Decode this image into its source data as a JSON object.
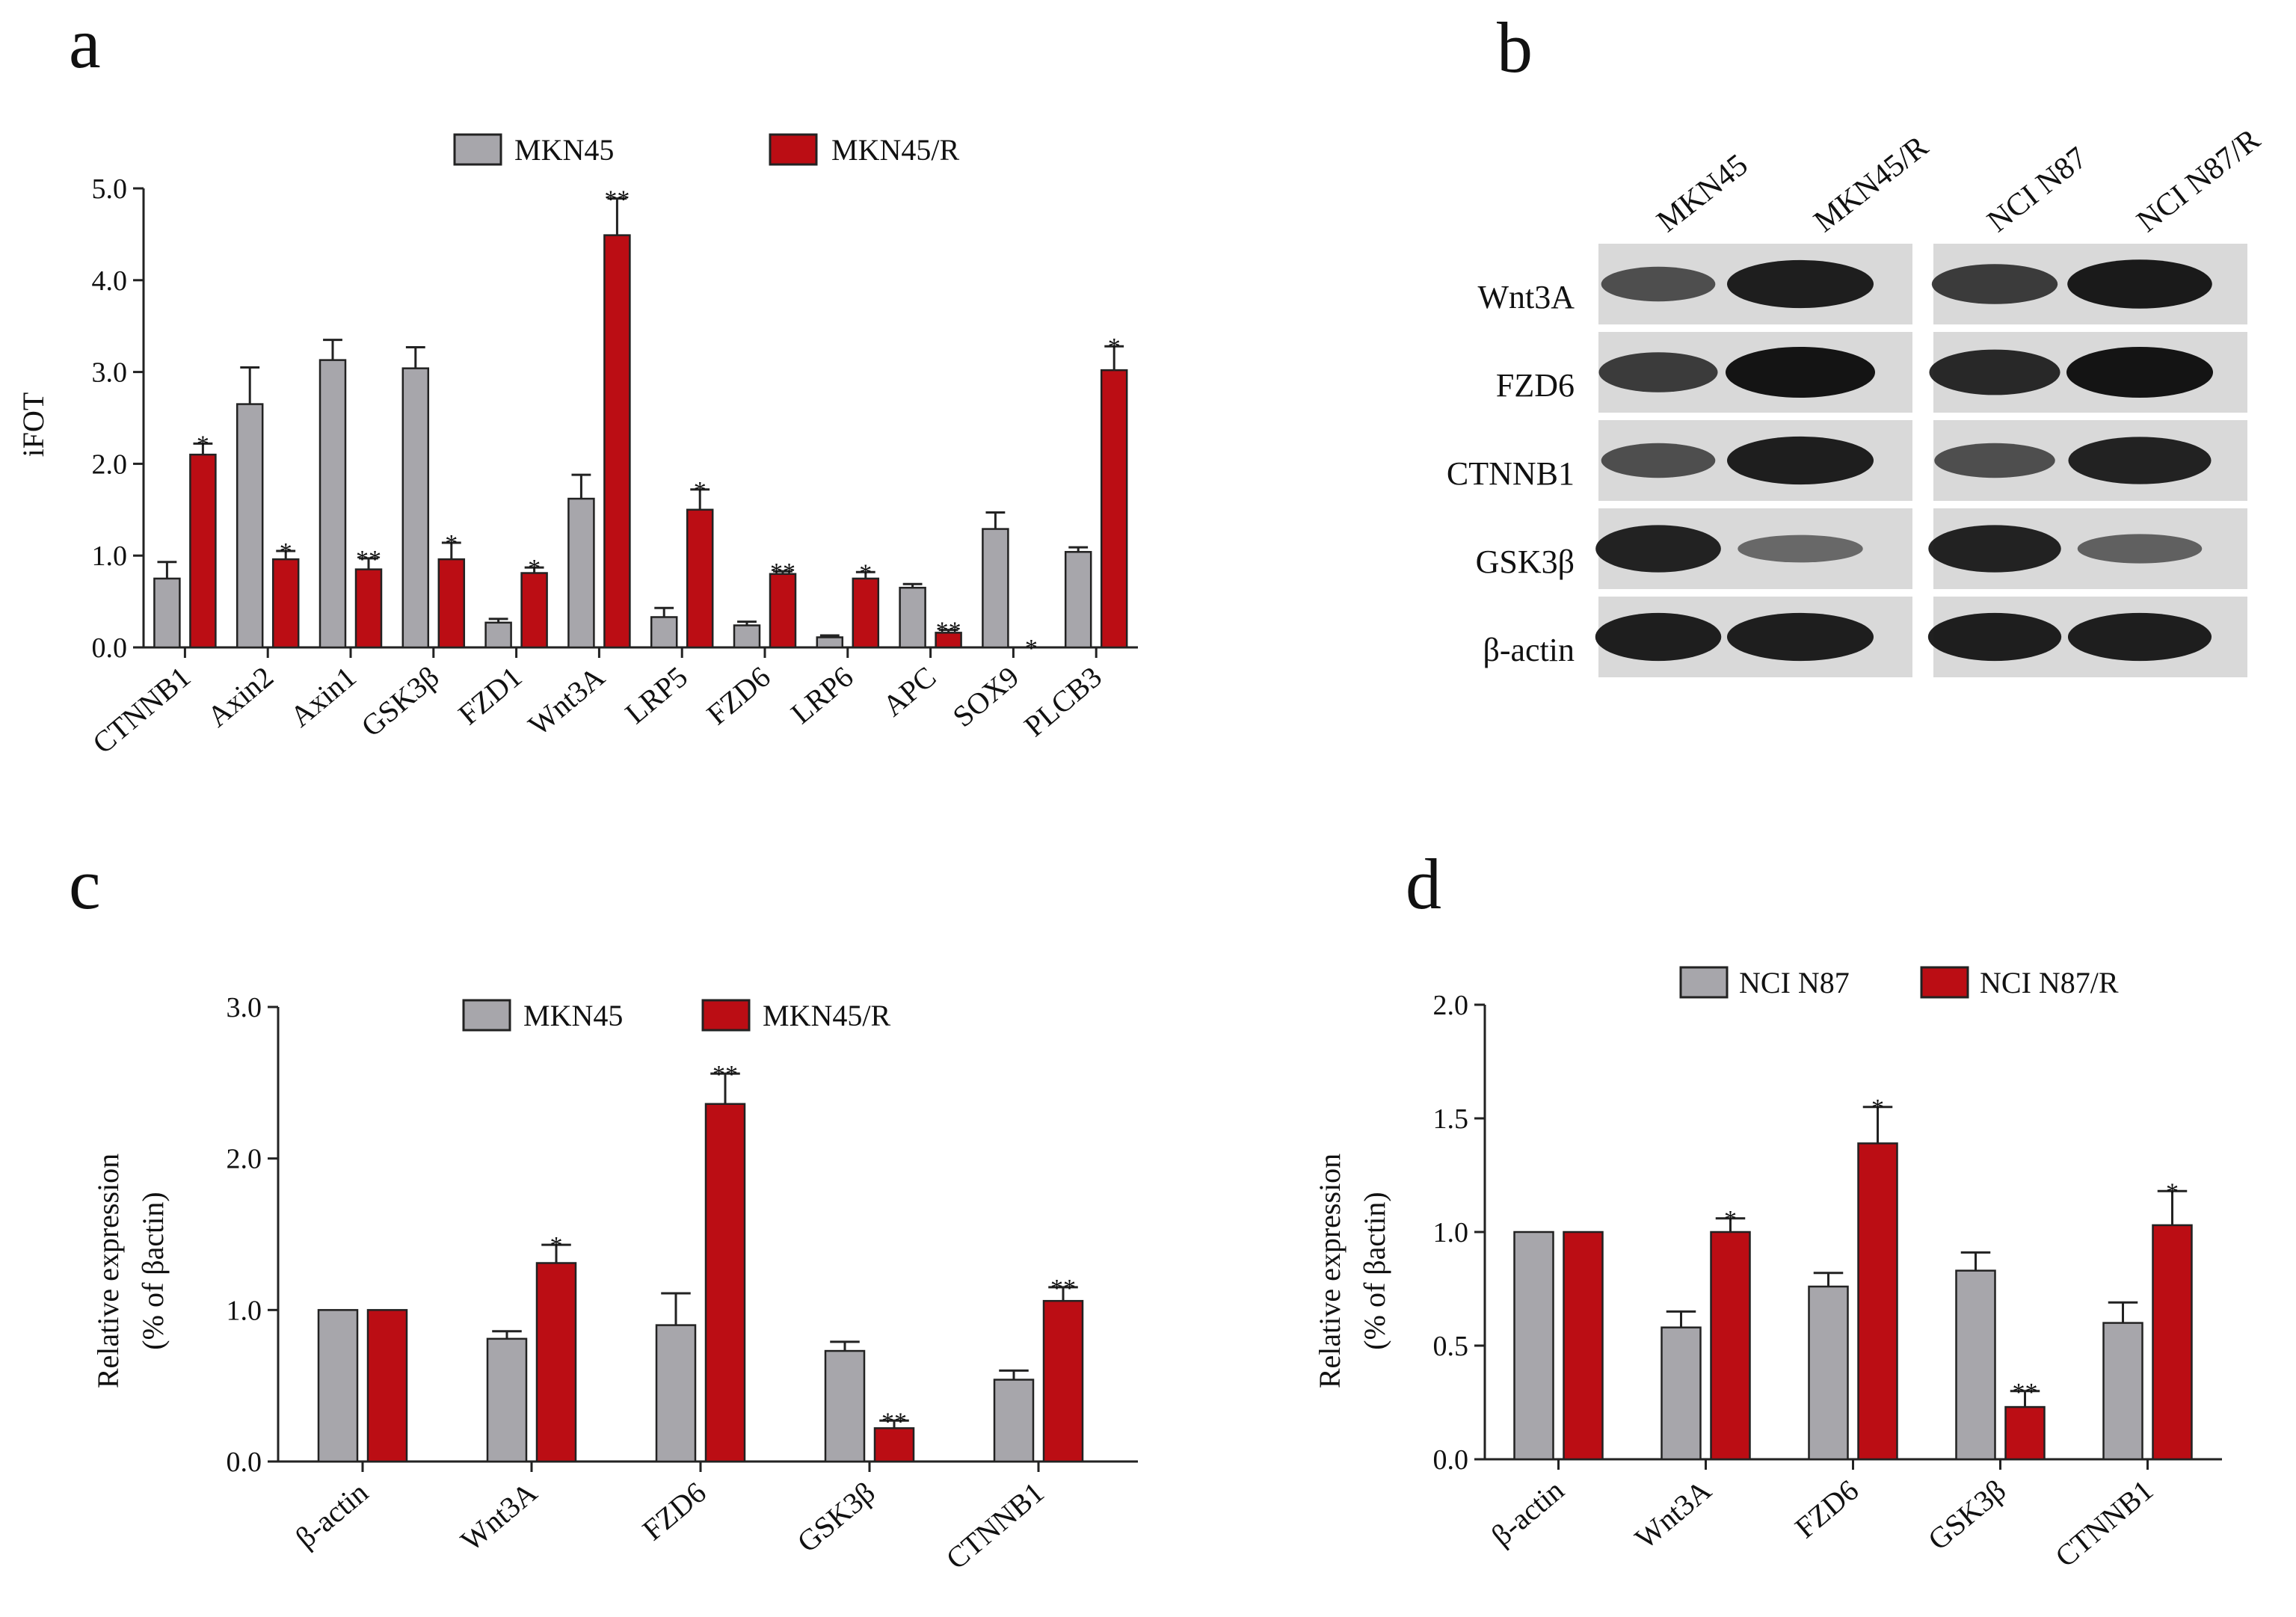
{
  "colors": {
    "control": "#a7a6ab",
    "resistant": "#bb0d14",
    "bar_edge": "#222222",
    "axis": "#222222",
    "blot_bg": "#d9d9d9",
    "blot_band": "#141414"
  },
  "chart_data": [
    {
      "panel": "a",
      "type": "bar",
      "title": "",
      "ylabel": "iFOT",
      "xlabel": "",
      "ylim": [
        0,
        5.0
      ],
      "yticks": [
        0,
        1,
        2,
        3,
        4,
        5
      ],
      "ytick_labels": [
        "0.0",
        "1.0",
        "2.0",
        "3.0",
        "4.0",
        "5.0"
      ],
      "categories": [
        "CTNNB1",
        "Axin2",
        "Axin1",
        "GSK3β",
        "FZD1",
        "Wnt3A",
        "LRP5",
        "FZD6",
        "LRP6",
        "APC",
        "SOX9",
        "PLCB3"
      ],
      "series": [
        {
          "name": "MKN45",
          "values": [
            0.75,
            2.65,
            3.13,
            3.04,
            0.27,
            1.62,
            0.33,
            0.24,
            0.11,
            0.65,
            1.29,
            1.04
          ],
          "errors": [
            0.18,
            0.4,
            0.22,
            0.23,
            0.04,
            0.26,
            0.1,
            0.04,
            0.02,
            0.04,
            0.18,
            0.05
          ]
        },
        {
          "name": "MKN45/R",
          "values": [
            2.1,
            0.96,
            0.85,
            0.96,
            0.81,
            4.49,
            1.5,
            0.8,
            0.75,
            0.16,
            0.0,
            3.02
          ],
          "errors": [
            0.12,
            0.09,
            0.12,
            0.18,
            0.06,
            0.4,
            0.22,
            0.03,
            0.07,
            0.03,
            0.0,
            0.26
          ]
        }
      ],
      "significance": [
        "*",
        "*",
        "**",
        "*",
        "*",
        "**",
        "*",
        "**",
        "*",
        "**",
        "*",
        "*"
      ],
      "legend_position": "top"
    },
    {
      "panel": "c",
      "type": "bar",
      "title": "",
      "ylabel": [
        "Relative expression",
        "(% of βactin)"
      ],
      "xlabel": "",
      "ylim": [
        0,
        3.0
      ],
      "yticks": [
        0,
        1,
        2,
        3
      ],
      "ytick_labels": [
        "0.0",
        "1.0",
        "2.0",
        "3.0"
      ],
      "categories": [
        "β-actin",
        "Wnt3A",
        "FZD6",
        "GSK3β",
        "CTNNB1"
      ],
      "series": [
        {
          "name": "MKN45",
          "values": [
            1.0,
            0.81,
            0.9,
            0.73,
            0.54
          ],
          "errors": [
            0.0,
            0.05,
            0.21,
            0.06,
            0.06
          ]
        },
        {
          "name": "MKN45/R",
          "values": [
            1.0,
            1.31,
            2.36,
            0.22,
            1.06
          ],
          "errors": [
            0.0,
            0.12,
            0.2,
            0.05,
            0.09
          ]
        }
      ],
      "significance": [
        "",
        "*",
        "**",
        "**",
        "**"
      ],
      "legend_position": "top"
    },
    {
      "panel": "d",
      "type": "bar",
      "title": "",
      "ylabel": [
        "Relative expression",
        "(% of βactin)"
      ],
      "xlabel": "",
      "ylim": [
        0,
        2.0
      ],
      "yticks": [
        0,
        0.5,
        1.0,
        1.5,
        2.0
      ],
      "ytick_labels": [
        "0.0",
        "0.5",
        "1.0",
        "1.5",
        "2.0"
      ],
      "categories": [
        "β-actin",
        "Wnt3A",
        "FZD6",
        "GSK3β",
        "CTNNB1"
      ],
      "series": [
        {
          "name": "NCI N87",
          "values": [
            1.0,
            0.58,
            0.76,
            0.83,
            0.6
          ],
          "errors": [
            0.0,
            0.07,
            0.06,
            0.08,
            0.09
          ]
        },
        {
          "name": "NCI N87/R",
          "values": [
            1.0,
            1.0,
            1.39,
            0.23,
            1.03
          ],
          "errors": [
            0.0,
            0.06,
            0.16,
            0.07,
            0.15
          ]
        }
      ],
      "significance": [
        "",
        "*",
        "*",
        "**",
        "*"
      ],
      "legend_position": "top"
    }
  ],
  "blot": {
    "panel": "b",
    "lanes": [
      "MKN45",
      "MKN45/R",
      "NCI N87",
      "NCI N87/R"
    ],
    "rows": [
      "Wnt3A",
      "FZD6",
      "CTNNB1",
      "GSK3β",
      "β-actin"
    ],
    "band_intensity": [
      [
        0.55,
        0.92,
        0.7,
        0.95
      ],
      [
        0.7,
        1.0,
        0.85,
        1.0
      ],
      [
        0.55,
        0.92,
        0.55,
        0.9
      ],
      [
        0.9,
        0.35,
        0.9,
        0.4
      ],
      [
        0.92,
        0.92,
        0.92,
        0.92
      ]
    ]
  }
}
